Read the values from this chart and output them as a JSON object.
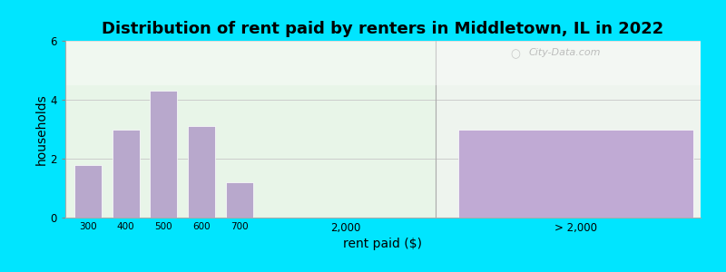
{
  "title": "Distribution of rent paid by renters in Middletown, IL in 2022",
  "xlabel": "rent paid ($)",
  "ylabel": "households",
  "bar_color": "#b8a8cc",
  "outer_bg": "#00e5ff",
  "ylim": [
    0,
    6
  ],
  "yticks": [
    0,
    2,
    4,
    6
  ],
  "bars": [
    {
      "label": "300",
      "value": 1.8
    },
    {
      "label": "400",
      "value": 3.0
    },
    {
      "label": "500",
      "value": 4.3
    },
    {
      "label": "600",
      "value": 3.1
    },
    {
      "label": "700",
      "value": 1.2
    }
  ],
  "right_bar": {
    "label": "> 2,000",
    "value": 3.0,
    "color": "#c0aad4"
  },
  "mid_label": "2,000",
  "title_fontsize": 13,
  "axis_label_fontsize": 10,
  "tick_fontsize": 8.5,
  "watermark": "City-Data.com"
}
